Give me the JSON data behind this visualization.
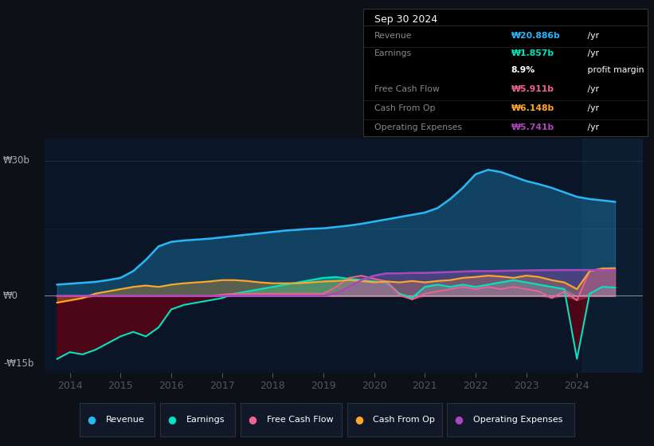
{
  "background_color": "#0d1117",
  "plot_bg_color": "#0a1628",
  "ylim": [
    -17,
    35
  ],
  "xlim": [
    2013.5,
    2025.3
  ],
  "xticks": [
    2014,
    2015,
    2016,
    2017,
    2018,
    2019,
    2020,
    2021,
    2022,
    2023,
    2024
  ],
  "colors": {
    "revenue": "#29b6f6",
    "earnings": "#00e5c0",
    "free_cash_flow": "#f06292",
    "cash_from_op": "#ffa726",
    "operating_expenses": "#ab47bc"
  },
  "x_years": [
    2013.75,
    2014.0,
    2014.25,
    2014.5,
    2014.75,
    2015.0,
    2015.25,
    2015.5,
    2015.75,
    2016.0,
    2016.25,
    2016.5,
    2016.75,
    2017.0,
    2017.25,
    2017.5,
    2017.75,
    2018.0,
    2018.25,
    2018.5,
    2018.75,
    2019.0,
    2019.25,
    2019.5,
    2019.75,
    2020.0,
    2020.25,
    2020.5,
    2020.75,
    2021.0,
    2021.25,
    2021.5,
    2021.75,
    2022.0,
    2022.25,
    2022.5,
    2022.75,
    2023.0,
    2023.25,
    2023.5,
    2023.75,
    2024.0,
    2024.25,
    2024.5,
    2024.75
  ],
  "revenue": [
    2.5,
    2.7,
    2.9,
    3.1,
    3.5,
    4.0,
    5.5,
    8.0,
    11.0,
    12.0,
    12.3,
    12.5,
    12.7,
    13.0,
    13.3,
    13.6,
    13.9,
    14.2,
    14.5,
    14.7,
    14.9,
    15.0,
    15.3,
    15.6,
    16.0,
    16.5,
    17.0,
    17.5,
    18.0,
    18.5,
    19.5,
    21.5,
    24.0,
    27.0,
    28.0,
    27.5,
    26.5,
    25.5,
    24.8,
    24.0,
    23.0,
    22.0,
    21.5,
    21.2,
    20.886
  ],
  "earnings": [
    -14.0,
    -12.5,
    -13.0,
    -12.0,
    -10.5,
    -9.0,
    -8.0,
    -9.0,
    -7.0,
    -3.0,
    -2.0,
    -1.5,
    -1.0,
    -0.5,
    0.5,
    1.0,
    1.5,
    2.0,
    2.5,
    3.0,
    3.5,
    4.0,
    4.2,
    3.8,
    3.5,
    3.2,
    3.0,
    0.5,
    -0.5,
    2.0,
    2.5,
    2.0,
    2.5,
    2.0,
    2.5,
    3.0,
    3.5,
    3.0,
    2.5,
    2.0,
    1.5,
    -14.0,
    0.5,
    2.0,
    1.857
  ],
  "free_cash_flow": [
    0.0,
    0.0,
    0.0,
    0.0,
    0.0,
    0.0,
    0.0,
    0.0,
    0.0,
    0.0,
    0.0,
    0.0,
    0.0,
    0.3,
    0.5,
    0.5,
    0.5,
    0.5,
    0.5,
    0.5,
    0.5,
    0.5,
    2.0,
    4.0,
    4.5,
    3.8,
    3.2,
    0.2,
    -0.8,
    0.5,
    1.0,
    1.5,
    2.0,
    1.5,
    2.0,
    1.5,
    2.0,
    1.5,
    1.0,
    -0.5,
    1.0,
    -1.0,
    5.5,
    5.9,
    5.911
  ],
  "cash_from_op": [
    -1.5,
    -1.0,
    -0.5,
    0.5,
    1.0,
    1.5,
    2.0,
    2.3,
    2.0,
    2.5,
    2.8,
    3.0,
    3.2,
    3.5,
    3.5,
    3.3,
    3.0,
    2.8,
    2.8,
    2.8,
    3.0,
    3.2,
    3.3,
    3.5,
    3.3,
    3.0,
    3.2,
    3.0,
    3.3,
    3.0,
    3.3,
    3.5,
    4.0,
    4.2,
    4.5,
    4.3,
    4.0,
    4.5,
    4.2,
    3.5,
    3.0,
    1.5,
    5.5,
    6.1,
    6.148
  ],
  "operating_expenses": [
    0.0,
    0.0,
    0.0,
    0.0,
    0.0,
    0.0,
    0.0,
    0.0,
    0.0,
    0.0,
    0.0,
    0.0,
    0.0,
    0.0,
    0.0,
    0.0,
    0.0,
    0.0,
    0.0,
    0.0,
    0.0,
    0.0,
    0.5,
    2.0,
    3.5,
    4.5,
    5.0,
    5.0,
    5.1,
    5.1,
    5.2,
    5.3,
    5.4,
    5.5,
    5.5,
    5.55,
    5.6,
    5.65,
    5.7,
    5.72,
    5.74,
    5.74,
    5.74,
    5.74,
    5.741
  ],
  "info_box": {
    "date": "Sep 30 2024",
    "rows": [
      {
        "label": "Revenue",
        "value": "₩20.886b",
        "suffix": " /yr",
        "value_color": "#29b6f6",
        "label_color": "#888888"
      },
      {
        "label": "Earnings",
        "value": "₩1.857b",
        "suffix": " /yr",
        "value_color": "#00e5c0",
        "label_color": "#888888"
      },
      {
        "label": "",
        "value": "8.9%",
        "suffix": " profit margin",
        "value_color": "#ffffff",
        "label_color": "#888888"
      },
      {
        "label": "Free Cash Flow",
        "value": "₩5.911b",
        "suffix": " /yr",
        "value_color": "#f06292",
        "label_color": "#888888"
      },
      {
        "label": "Cash From Op",
        "value": "₩6.148b",
        "suffix": " /yr",
        "value_color": "#ffa726",
        "label_color": "#888888"
      },
      {
        "label": "Operating Expenses",
        "value": "₩5.741b",
        "suffix": " /yr",
        "value_color": "#ab47bc",
        "label_color": "#888888"
      }
    ]
  },
  "legend": [
    {
      "label": "Revenue",
      "color": "#29b6f6"
    },
    {
      "label": "Earnings",
      "color": "#00e5c0"
    },
    {
      "label": "Free Cash Flow",
      "color": "#f06292"
    },
    {
      "label": "Cash From Op",
      "color": "#ffa726"
    },
    {
      "label": "Operating Expenses",
      "color": "#ab47bc"
    }
  ]
}
